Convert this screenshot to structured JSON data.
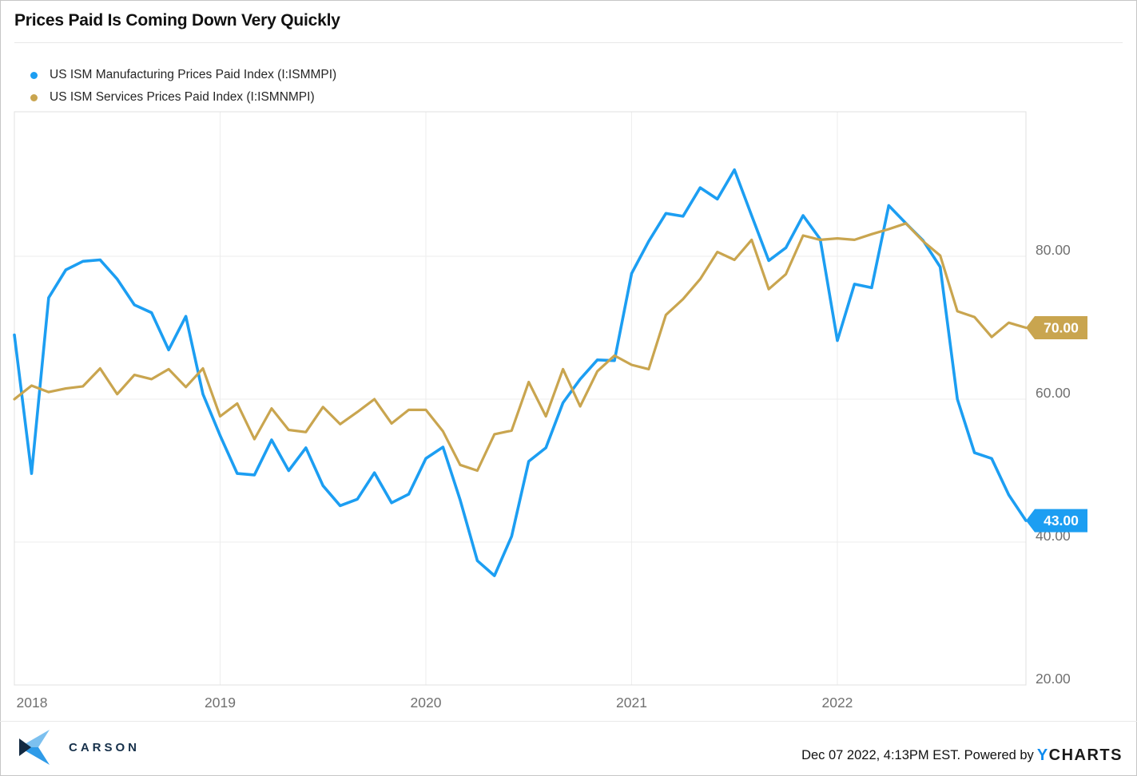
{
  "header": {
    "title": "Prices Paid Is Coming Down Very Quickly"
  },
  "legend": [
    {
      "label": "US ISM Manufacturing Prices Paid Index (I:ISMMPI)",
      "color": "#1c9ef2"
    },
    {
      "label": "US ISM Services Prices Paid Index (I:ISMNMPI)",
      "color": "#c9a54f"
    }
  ],
  "footer": {
    "brand": "CARSON",
    "timestamp_powered": "Dec 07 2022, 4:13PM EST. Powered by",
    "ycharts_y": "Y",
    "ycharts_rest": "CHARTS"
  },
  "chart_data": {
    "type": "line",
    "title": "Prices Paid Is Coming Down Very Quickly",
    "xlabel": "",
    "ylabel": "",
    "grid": true,
    "legend_position": "top-left",
    "ylim": [
      20,
      100.2
    ],
    "x": [
      "2017-12",
      "2018-01",
      "2018-02",
      "2018-03",
      "2018-04",
      "2018-05",
      "2018-06",
      "2018-07",
      "2018-08",
      "2018-09",
      "2018-10",
      "2018-11",
      "2018-12",
      "2019-01",
      "2019-02",
      "2019-03",
      "2019-04",
      "2019-05",
      "2019-06",
      "2019-07",
      "2019-08",
      "2019-09",
      "2019-10",
      "2019-11",
      "2019-12",
      "2020-01",
      "2020-02",
      "2020-03",
      "2020-04",
      "2020-05",
      "2020-06",
      "2020-07",
      "2020-08",
      "2020-09",
      "2020-10",
      "2020-11",
      "2020-12",
      "2021-01",
      "2021-02",
      "2021-03",
      "2021-04",
      "2021-05",
      "2021-06",
      "2021-07",
      "2021-08",
      "2021-09",
      "2021-10",
      "2021-11",
      "2021-12",
      "2022-01",
      "2022-02",
      "2022-03",
      "2022-04",
      "2022-05",
      "2022-06",
      "2022-07",
      "2022-08",
      "2022-09",
      "2022-10",
      "2022-11"
    ],
    "x_ticks": [
      {
        "index": 0,
        "label": "2018"
      },
      {
        "index": 12,
        "label": "2019"
      },
      {
        "index": 24,
        "label": "2020"
      },
      {
        "index": 36,
        "label": "2021"
      },
      {
        "index": 48,
        "label": "2022"
      }
    ],
    "y_ticks": [
      {
        "value": 80,
        "label": "80.00"
      },
      {
        "value": 60,
        "label": "60.00"
      },
      {
        "value": 40,
        "label": "40.00"
      },
      {
        "value": 20,
        "label": "20.00"
      }
    ],
    "series": [
      {
        "name": "US ISM Manufacturing Prices Paid Index (I:ISMMPI)",
        "color": "#1c9ef2",
        "line_width": 3.6,
        "end_label": "43.00",
        "values": [
          69.0,
          49.6,
          74.2,
          78.1,
          79.3,
          79.5,
          76.8,
          73.2,
          72.1,
          66.9,
          71.6,
          60.7,
          54.9,
          49.6,
          49.4,
          54.3,
          50.0,
          53.2,
          47.9,
          45.1,
          46.0,
          49.7,
          45.5,
          46.7,
          51.7,
          53.3,
          45.9,
          37.4,
          35.3,
          40.8,
          51.3,
          53.2,
          59.5,
          62.8,
          65.5,
          65.4,
          77.6,
          82.1,
          86.0,
          85.6,
          89.6,
          88.0,
          92.1,
          85.7,
          79.4,
          81.2,
          85.7,
          82.4,
          68.2,
          76.1,
          75.6,
          87.1,
          84.6,
          82.2,
          78.5,
          60.0,
          52.5,
          51.7,
          46.6,
          43.0
        ]
      },
      {
        "name": "US ISM Services Prices Paid Index (I:ISMNMPI)",
        "color": "#c9a54f",
        "line_width": 3.2,
        "end_label": "70.00",
        "values": [
          60.0,
          61.9,
          61.0,
          61.5,
          61.8,
          64.3,
          60.7,
          63.4,
          62.8,
          64.2,
          61.7,
          64.3,
          57.6,
          59.4,
          54.4,
          58.7,
          55.7,
          55.4,
          58.9,
          56.5,
          58.2,
          60.0,
          56.6,
          58.5,
          58.5,
          55.5,
          50.8,
          50.0,
          55.1,
          55.6,
          62.4,
          57.6,
          64.2,
          59.0,
          63.9,
          66.1,
          64.8,
          64.2,
          71.8,
          74.0,
          76.8,
          80.6,
          79.5,
          82.3,
          75.4,
          77.5,
          82.9,
          82.3,
          82.5,
          82.3,
          83.1,
          83.8,
          84.6,
          82.1,
          80.1,
          72.3,
          71.5,
          68.7,
          70.7,
          70.0
        ]
      }
    ],
    "colors": {
      "grid": "#ededed",
      "plot_border": "#e0e0e0",
      "tick_label": "#707070",
      "badge_text": "#ffffff"
    }
  }
}
